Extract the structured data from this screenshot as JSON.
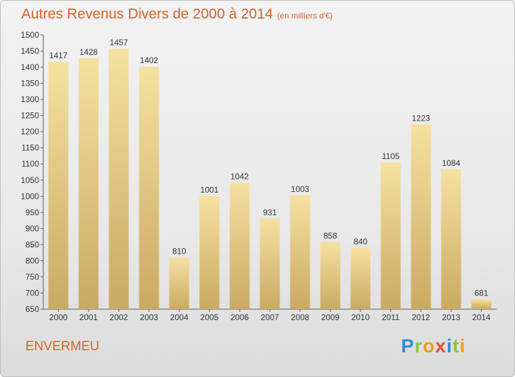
{
  "header": {
    "title": "Autres Revenus Divers de 2000 à 2014",
    "subtitle": "(en milliers d'€)"
  },
  "footer": {
    "town": "ENVERMEU"
  },
  "logo": {
    "letters": [
      {
        "char": "P",
        "color": "#2f8fd8"
      },
      {
        "char": "r",
        "color": "#8cc63f"
      },
      {
        "char": "o",
        "color": "#f39c12"
      },
      {
        "char": "x",
        "color": "#e74c3c"
      },
      {
        "char": "i",
        "color": "#2f8fd8"
      },
      {
        "char": "t",
        "color": "#8cc63f"
      },
      {
        "char": "i",
        "color": "#f39c12"
      }
    ]
  },
  "colors": {
    "accent": "#d2642a",
    "bar_top": "#f6e1a1",
    "bar_bottom": "#c9aa62"
  },
  "chart_data": {
    "type": "bar",
    "categories": [
      "2000",
      "2001",
      "2002",
      "2003",
      "2004",
      "2005",
      "2006",
      "2007",
      "2008",
      "2009",
      "2010",
      "2011",
      "2012",
      "2013",
      "2014"
    ],
    "values": [
      1417,
      1428,
      1457,
      1402,
      810,
      1001,
      1042,
      931,
      1003,
      858,
      840,
      1105,
      1223,
      1084,
      681
    ],
    "ylim": [
      650,
      1500
    ],
    "yticks": [
      650,
      700,
      750,
      800,
      850,
      900,
      950,
      1000,
      1050,
      1100,
      1150,
      1200,
      1250,
      1300,
      1350,
      1400,
      1450,
      1500
    ],
    "grid": false,
    "legend": "none"
  }
}
